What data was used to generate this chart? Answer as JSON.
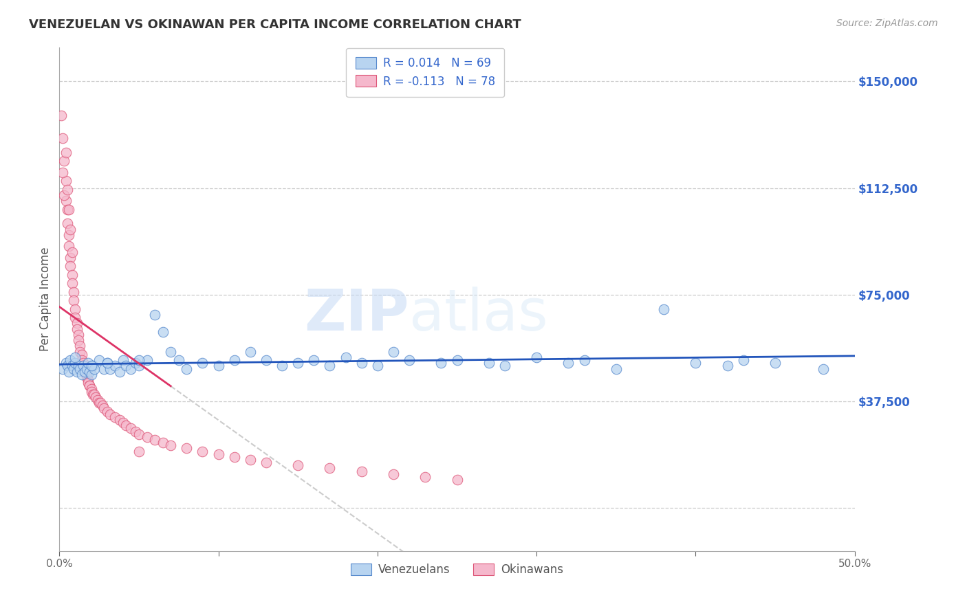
{
  "title": "VENEZUELAN VS OKINAWAN PER CAPITA INCOME CORRELATION CHART",
  "source": "Source: ZipAtlas.com",
  "ylabel": "Per Capita Income",
  "xlim": [
    0.0,
    0.5
  ],
  "ylim": [
    -15000,
    162000
  ],
  "yticks": [
    0,
    37500,
    75000,
    112500,
    150000
  ],
  "ytick_labels": [
    "",
    "$37,500",
    "$75,000",
    "$112,500",
    "$150,000"
  ],
  "xticks": [
    0.0,
    0.1,
    0.2,
    0.3,
    0.4,
    0.5
  ],
  "xtick_labels": [
    "0.0%",
    "",
    "",
    "",
    "",
    "50.0%"
  ],
  "blue_color": "#b8d4f0",
  "blue_edge": "#5588cc",
  "pink_color": "#f5b8cc",
  "pink_edge": "#dd5577",
  "trend_blue": "#2255bb",
  "trend_pink": "#dd3366",
  "trend_pink_dashed": "#cccccc",
  "legend_blue_R": "R = 0.014",
  "legend_blue_N": "N = 69",
  "legend_pink_R": "R = -0.113",
  "legend_pink_N": "N = 78",
  "label_venezuelans": "Venezuelans",
  "label_okinawans": "Okinawans",
  "watermark_zip": "ZIP",
  "watermark_atlas": "atlas",
  "background_color": "#ffffff",
  "grid_color": "#cccccc",
  "axis_color": "#aaaaaa",
  "title_color": "#333333",
  "ylabel_color": "#555555",
  "ytick_color": "#3366cc",
  "xtick_color": "#666666",
  "venezuelan_x": [
    0.002,
    0.004,
    0.005,
    0.006,
    0.007,
    0.008,
    0.009,
    0.01,
    0.011,
    0.012,
    0.013,
    0.014,
    0.015,
    0.016,
    0.017,
    0.018,
    0.019,
    0.02,
    0.021,
    0.022,
    0.025,
    0.028,
    0.03,
    0.032,
    0.035,
    0.038,
    0.04,
    0.042,
    0.045,
    0.048,
    0.05,
    0.055,
    0.06,
    0.065,
    0.07,
    0.075,
    0.08,
    0.09,
    0.1,
    0.11,
    0.12,
    0.13,
    0.14,
    0.15,
    0.16,
    0.17,
    0.18,
    0.19,
    0.2,
    0.21,
    0.22,
    0.24,
    0.25,
    0.27,
    0.28,
    0.3,
    0.32,
    0.33,
    0.35,
    0.38,
    0.4,
    0.42,
    0.43,
    0.45,
    0.48,
    0.01,
    0.02,
    0.03,
    0.05
  ],
  "venezuelan_y": [
    49000,
    51000,
    50000,
    48000,
    52000,
    50000,
    49000,
    51000,
    48000,
    50000,
    49000,
    47000,
    50000,
    48000,
    49000,
    51000,
    48000,
    47000,
    50000,
    49000,
    52000,
    49000,
    51000,
    49000,
    50000,
    48000,
    52000,
    50000,
    49000,
    51000,
    50000,
    52000,
    68000,
    62000,
    55000,
    52000,
    49000,
    51000,
    50000,
    52000,
    55000,
    52000,
    50000,
    51000,
    52000,
    50000,
    53000,
    51000,
    50000,
    55000,
    52000,
    51000,
    52000,
    51000,
    50000,
    53000,
    51000,
    52000,
    49000,
    70000,
    51000,
    50000,
    52000,
    51000,
    49000,
    53000,
    50000,
    51000,
    52000
  ],
  "okinawan_x": [
    0.001,
    0.002,
    0.003,
    0.004,
    0.004,
    0.005,
    0.005,
    0.006,
    0.006,
    0.007,
    0.007,
    0.008,
    0.008,
    0.009,
    0.009,
    0.01,
    0.01,
    0.011,
    0.011,
    0.012,
    0.012,
    0.013,
    0.013,
    0.014,
    0.014,
    0.015,
    0.015,
    0.016,
    0.016,
    0.017,
    0.017,
    0.018,
    0.018,
    0.019,
    0.019,
    0.02,
    0.02,
    0.021,
    0.022,
    0.023,
    0.024,
    0.025,
    0.026,
    0.027,
    0.028,
    0.03,
    0.032,
    0.035,
    0.038,
    0.04,
    0.042,
    0.045,
    0.048,
    0.05,
    0.055,
    0.06,
    0.065,
    0.07,
    0.08,
    0.09,
    0.1,
    0.11,
    0.12,
    0.13,
    0.15,
    0.17,
    0.19,
    0.21,
    0.23,
    0.25,
    0.002,
    0.003,
    0.004,
    0.005,
    0.006,
    0.007,
    0.008,
    0.05
  ],
  "okinawan_y": [
    138000,
    130000,
    122000,
    115000,
    108000,
    105000,
    100000,
    96000,
    92000,
    88000,
    85000,
    82000,
    79000,
    76000,
    73000,
    70000,
    67000,
    65000,
    63000,
    61000,
    59000,
    57000,
    55000,
    54000,
    52000,
    51000,
    50000,
    49000,
    48000,
    47000,
    46000,
    45000,
    44000,
    43000,
    43000,
    42000,
    41000,
    40000,
    40000,
    39000,
    38000,
    37000,
    37000,
    36000,
    35000,
    34000,
    33000,
    32000,
    31000,
    30000,
    29000,
    28000,
    27000,
    26000,
    25000,
    24000,
    23000,
    22000,
    21000,
    20000,
    19000,
    18000,
    17000,
    16000,
    15000,
    14000,
    13000,
    12000,
    11000,
    10000,
    118000,
    110000,
    125000,
    112000,
    105000,
    98000,
    90000,
    20000
  ]
}
